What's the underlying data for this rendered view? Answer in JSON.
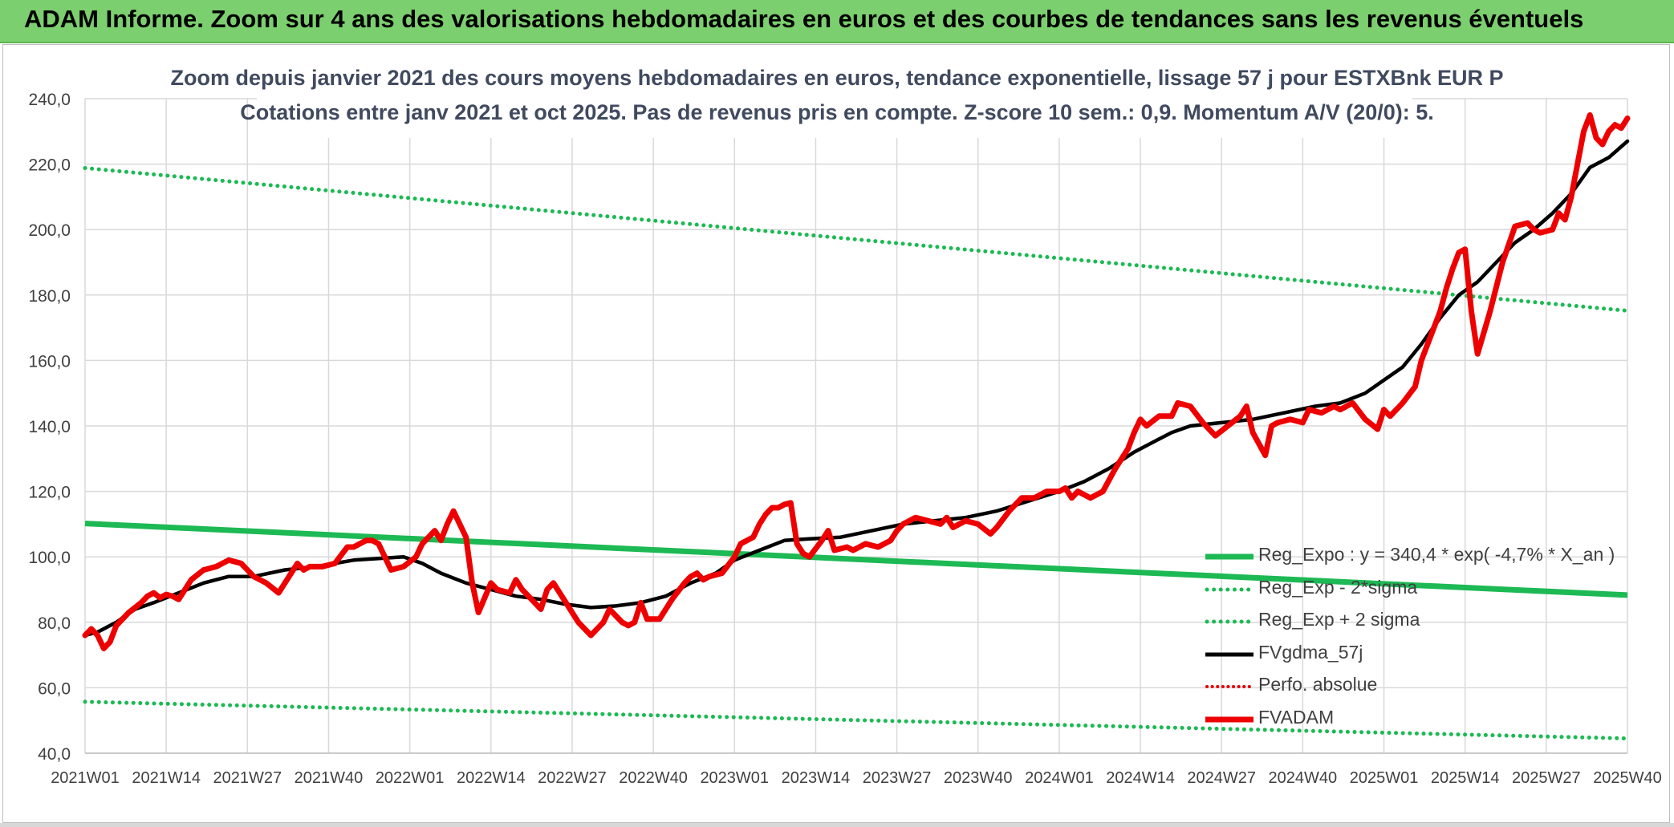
{
  "banner": {
    "title": "ADAM Informe. Zoom sur 4 ans des valorisations hebdomadaires en euros et des courbes de tendances sans les revenus éventuels"
  },
  "chart_data": {
    "type": "line",
    "title": "Zoom depuis janvier 2021 des cours moyens hebdomadaires en euros, tendance exponentielle, lissage 57 j pour ESTXBnk EUR P",
    "subtitle": "Cotations entre janv 2021 et oct 2025. Pas de revenus pris en compte. Z-score 10 sem.: 0,9. Momentum A/V (20/0): 5.",
    "xlabel": "",
    "ylabel": "",
    "ylim": [
      40,
      240
    ],
    "y_ticks": [
      "40,0",
      "60,0",
      "80,0",
      "100,0",
      "120,0",
      "140,0",
      "160,0",
      "180,0",
      "200,0",
      "220,0",
      "240,0"
    ],
    "y_tick_values": [
      40,
      60,
      80,
      100,
      120,
      140,
      160,
      180,
      200,
      220,
      240
    ],
    "x_tick_labels": [
      "2021W01",
      "2021W14",
      "2021W27",
      "2021W40",
      "2022W01",
      "2022W14",
      "2022W27",
      "2022W40",
      "2023W01",
      "2023W14",
      "2023W27",
      "2023W40",
      "2024W01",
      "2024W14",
      "2024W27",
      "2024W40",
      "2025W01",
      "2025W14",
      "2025W27",
      "2025W40"
    ],
    "grid": true,
    "legend_position": "bottom-right",
    "series": [
      {
        "name": "Reg_Expo : y = 340,4 * exp( -4,7% *  X_an )",
        "color": "#1db954",
        "style": "solid",
        "x": [
          "2021W01",
          "2025W40"
        ],
        "values": [
          110.2,
          88.3
        ]
      },
      {
        "name": "Reg_Exp - 2*sigma",
        "color": "#1db954",
        "style": "dotted",
        "x": [
          "2021W01",
          "2025W40"
        ],
        "values": [
          55.7,
          44.5
        ]
      },
      {
        "name": "Reg_Exp + 2 sigma",
        "color": "#1db954",
        "style": "dotted",
        "x": [
          "2021W01",
          "2025W40"
        ],
        "values": [
          218.8,
          175.2
        ]
      },
      {
        "name": "FVgdma_57j",
        "color": "#000000",
        "style": "solid",
        "x": [
          "2021W01",
          "2021W03",
          "2021W06",
          "2021W09",
          "2021W12",
          "2021W16",
          "2021W20",
          "2021W24",
          "2021W28",
          "2021W33",
          "2021W38",
          "2021W44",
          "2021W48",
          "2021W52",
          "2022W03",
          "2022W06",
          "2022W10",
          "2022W14",
          "2022W18",
          "2022W22",
          "2022W26",
          "2022W30",
          "2022W34",
          "2022W38",
          "2022W42",
          "2022W46",
          "2022W50",
          "2023W01",
          "2023W05",
          "2023W09",
          "2023W13",
          "2023W18",
          "2023W23",
          "2023W28",
          "2023W33",
          "2023W38",
          "2023W43",
          "2023W48",
          "2024W01",
          "2024W05",
          "2024W09",
          "2024W13",
          "2024W16",
          "2024W19",
          "2024W22",
          "2024W27",
          "2024W32",
          "2024W37",
          "2024W42",
          "2024W46",
          "2024W50",
          "2025W01",
          "2025W04",
          "2025W07",
          "2025W10",
          "2025W13",
          "2025W16",
          "2025W19",
          "2025W22",
          "2025W25",
          "2025W28",
          "2025W31",
          "2025W34",
          "2025W37",
          "2025W40"
        ],
        "values": [
          76,
          77,
          80,
          84,
          86,
          89,
          92,
          94,
          94,
          96,
          97,
          99,
          99.5,
          100,
          98,
          95,
          92,
          90,
          88,
          87,
          85.5,
          84.5,
          85,
          86,
          88,
          92,
          95,
          99,
          102,
          105,
          105.5,
          106,
          108,
          110,
          111,
          112,
          114,
          117,
          120,
          123,
          127,
          132,
          135,
          138,
          140,
          141,
          142,
          144,
          146,
          147,
          150,
          154,
          158,
          165,
          173,
          180,
          184,
          190,
          196,
          200,
          205,
          211,
          219,
          222,
          227
        ]
      },
      {
        "name": "Perfo. absolue",
        "color": "#e60000",
        "style": "dotted",
        "x": [],
        "values": []
      },
      {
        "name": "FVADAM",
        "color": "#ee0000",
        "style": "solid",
        "x": [
          "2021W01",
          "2021W02",
          "2021W03",
          "2021W04",
          "2021W05",
          "2021W06",
          "2021W08",
          "2021W10",
          "2021W11",
          "2021W12",
          "2021W13",
          "2021W14",
          "2021W15",
          "2021W16",
          "2021W18",
          "2021W20",
          "2021W22",
          "2021W24",
          "2021W26",
          "2021W27",
          "2021W28",
          "2021W30",
          "2021W32",
          "2021W34",
          "2021W35",
          "2021W36",
          "2021W37",
          "2021W39",
          "2021W41",
          "2021W43",
          "2021W44",
          "2021W46",
          "2021W47",
          "2021W48",
          "2021W50",
          "2021W52",
          "2022W02",
          "2022W03",
          "2022W05",
          "2022W06",
          "2022W07",
          "2022W08",
          "2022W10",
          "2022W11",
          "2022W12",
          "2022W14",
          "2022W15",
          "2022W17",
          "2022W18",
          "2022W19",
          "2022W21",
          "2022W22",
          "2022W23",
          "2022W24",
          "2022W26",
          "2022W28",
          "2022W30",
          "2022W31",
          "2022W32",
          "2022W33",
          "2022W35",
          "2022W36",
          "2022W37",
          "2022W38",
          "2022W39",
          "2022W41",
          "2022W43",
          "2022W45",
          "2022W46",
          "2022W47",
          "2022W48",
          "2022W49",
          "2022W51",
          "2023W01",
          "2023W02",
          "2023W03",
          "2023W04",
          "2023W05",
          "2023W06",
          "2023W07",
          "2023W08",
          "2023W09",
          "2023W10",
          "2023W11",
          "2023W12",
          "2023W13",
          "2023W15",
          "2023W16",
          "2023W17",
          "2023W19",
          "2023W20",
          "2023W22",
          "2023W24",
          "2023W26",
          "2023W27",
          "2023W28",
          "2023W30",
          "2023W32",
          "2023W34",
          "2023W35",
          "2023W36",
          "2023W38",
          "2023W40",
          "2023W42",
          "2023W43",
          "2023W45",
          "2023W47",
          "2023W49",
          "2023W51",
          "2024W01",
          "2024W02",
          "2024W03",
          "2024W04",
          "2024W06",
          "2024W08",
          "2024W10",
          "2024W12",
          "2024W13",
          "2024W14",
          "2024W15",
          "2024W17",
          "2024W19",
          "2024W20",
          "2024W22",
          "2024W24",
          "2024W26",
          "2024W28",
          "2024W30",
          "2024W31",
          "2024W32",
          "2024W34",
          "2024W35",
          "2024W36",
          "2024W38",
          "2024W40",
          "2024W41",
          "2024W43",
          "2024W45",
          "2024W46",
          "2024W48",
          "2024W50",
          "2024W52",
          "2025W01",
          "2025W02",
          "2025W04",
          "2025W06",
          "2025W07",
          "2025W08",
          "2025W09",
          "2025W10",
          "2025W11",
          "2025W12",
          "2025W13",
          "2025W14",
          "2025W15",
          "2025W16",
          "2025W18",
          "2025W20",
          "2025W22",
          "2025W24",
          "2025W25",
          "2025W26",
          "2025W28",
          "2025W29",
          "2025W30",
          "2025W31",
          "2025W32",
          "2025W33",
          "2025W34",
          "2025W35",
          "2025W36",
          "2025W37",
          "2025W38",
          "2025W39",
          "2025W40"
        ],
        "values": [
          76,
          78,
          76,
          72,
          74,
          79,
          83,
          86,
          88,
          89,
          87.5,
          88.5,
          88,
          87,
          93,
          96,
          97,
          99,
          98,
          96,
          94,
          92,
          89,
          95,
          98,
          96,
          97,
          97,
          98,
          103,
          103,
          105,
          105,
          104,
          96,
          97,
          100,
          104,
          108,
          105,
          110,
          114,
          106,
          92,
          83,
          92,
          90,
          89,
          93,
          90,
          86,
          84,
          90,
          92,
          86,
          80,
          76,
          78,
          80,
          84,
          80,
          79,
          80,
          86,
          81,
          81,
          87,
          92,
          94,
          95,
          93,
          94,
          95,
          100,
          104,
          105,
          106,
          110,
          113,
          115,
          115,
          116,
          116.5,
          104,
          101,
          100,
          105,
          108,
          102,
          103,
          102,
          104,
          103,
          105,
          108,
          110,
          112,
          111,
          110,
          112,
          109,
          111,
          110,
          107,
          109,
          114,
          118,
          118,
          120,
          120,
          121,
          118,
          120,
          118,
          120,
          127,
          133,
          138,
          142,
          140,
          143,
          143,
          147,
          146,
          141,
          137,
          140,
          143,
          146,
          138,
          131,
          140,
          141,
          142,
          141,
          145,
          144,
          146,
          145,
          147,
          142,
          139,
          145,
          143,
          147,
          152,
          160,
          165,
          170,
          175,
          182,
          188,
          193,
          194,
          175,
          162,
          175,
          190,
          201,
          202,
          200,
          199,
          200,
          205,
          203,
          210,
          220,
          230,
          235,
          228,
          226,
          230,
          232,
          231,
          234
        ]
      }
    ]
  }
}
